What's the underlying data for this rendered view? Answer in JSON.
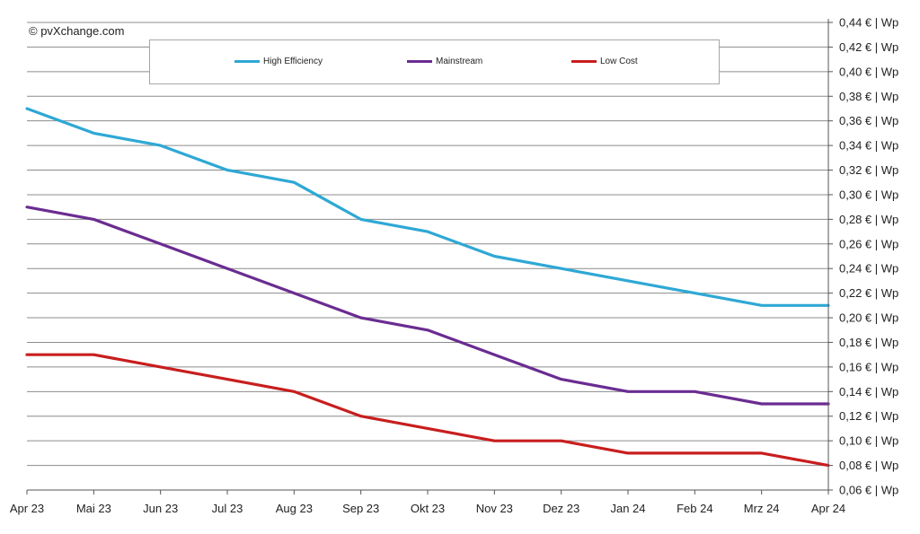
{
  "copyright": "© pvXchange.com",
  "chart_data": {
    "type": "line",
    "title": "",
    "xlabel": "",
    "ylabel": "",
    "categories": [
      "Apr 23",
      "Mai 23",
      "Jun 23",
      "Jul 23",
      "Aug 23",
      "Sep 23",
      "Okt 23",
      "Nov 23",
      "Dez 23",
      "Jan 24",
      "Feb 24",
      "Mrz 24",
      "Apr 24"
    ],
    "y_ticks": [
      0.06,
      0.08,
      0.1,
      0.12,
      0.14,
      0.16,
      0.18,
      0.2,
      0.22,
      0.24,
      0.26,
      0.28,
      0.3,
      0.32,
      0.34,
      0.36,
      0.38,
      0.4,
      0.42,
      0.44
    ],
    "y_tick_labels": [
      "0,06 € | Wp",
      "0,08 € | Wp",
      "0,10 € | Wp",
      "0,12 € | Wp",
      "0,14 € | Wp",
      "0,16 € | Wp",
      "0,18 € | Wp",
      "0,20 € | Wp",
      "0,22 € | Wp",
      "0,24 € | Wp",
      "0,26 € | Wp",
      "0,28 € | Wp",
      "0,30 € | Wp",
      "0,32 € | Wp",
      "0,34 € | Wp",
      "0,36 € | Wp",
      "0,38 € | Wp",
      "0,40 € | Wp",
      "0,42 € | Wp",
      "0,44 € | Wp"
    ],
    "ylim": [
      0.06,
      0.44
    ],
    "y_axis_side": "right",
    "grid": true,
    "legend_position": "top",
    "series": [
      {
        "name": "High Efficiency",
        "color": "#2ea8d5",
        "values": [
          0.37,
          0.35,
          0.34,
          0.32,
          0.31,
          0.28,
          0.27,
          0.25,
          0.24,
          0.23,
          0.22,
          0.21,
          0.21
        ]
      },
      {
        "name": "Mainstream",
        "color": "#6a2c91",
        "values": [
          0.29,
          0.28,
          0.26,
          0.24,
          0.22,
          0.2,
          0.19,
          0.17,
          0.15,
          0.14,
          0.14,
          0.13,
          0.13
        ]
      },
      {
        "name": "Low Cost",
        "color": "#c81e1e",
        "values": [
          0.17,
          0.17,
          0.16,
          0.15,
          0.14,
          0.12,
          0.11,
          0.1,
          0.1,
          0.09,
          0.09,
          0.09,
          0.08
        ]
      }
    ]
  }
}
